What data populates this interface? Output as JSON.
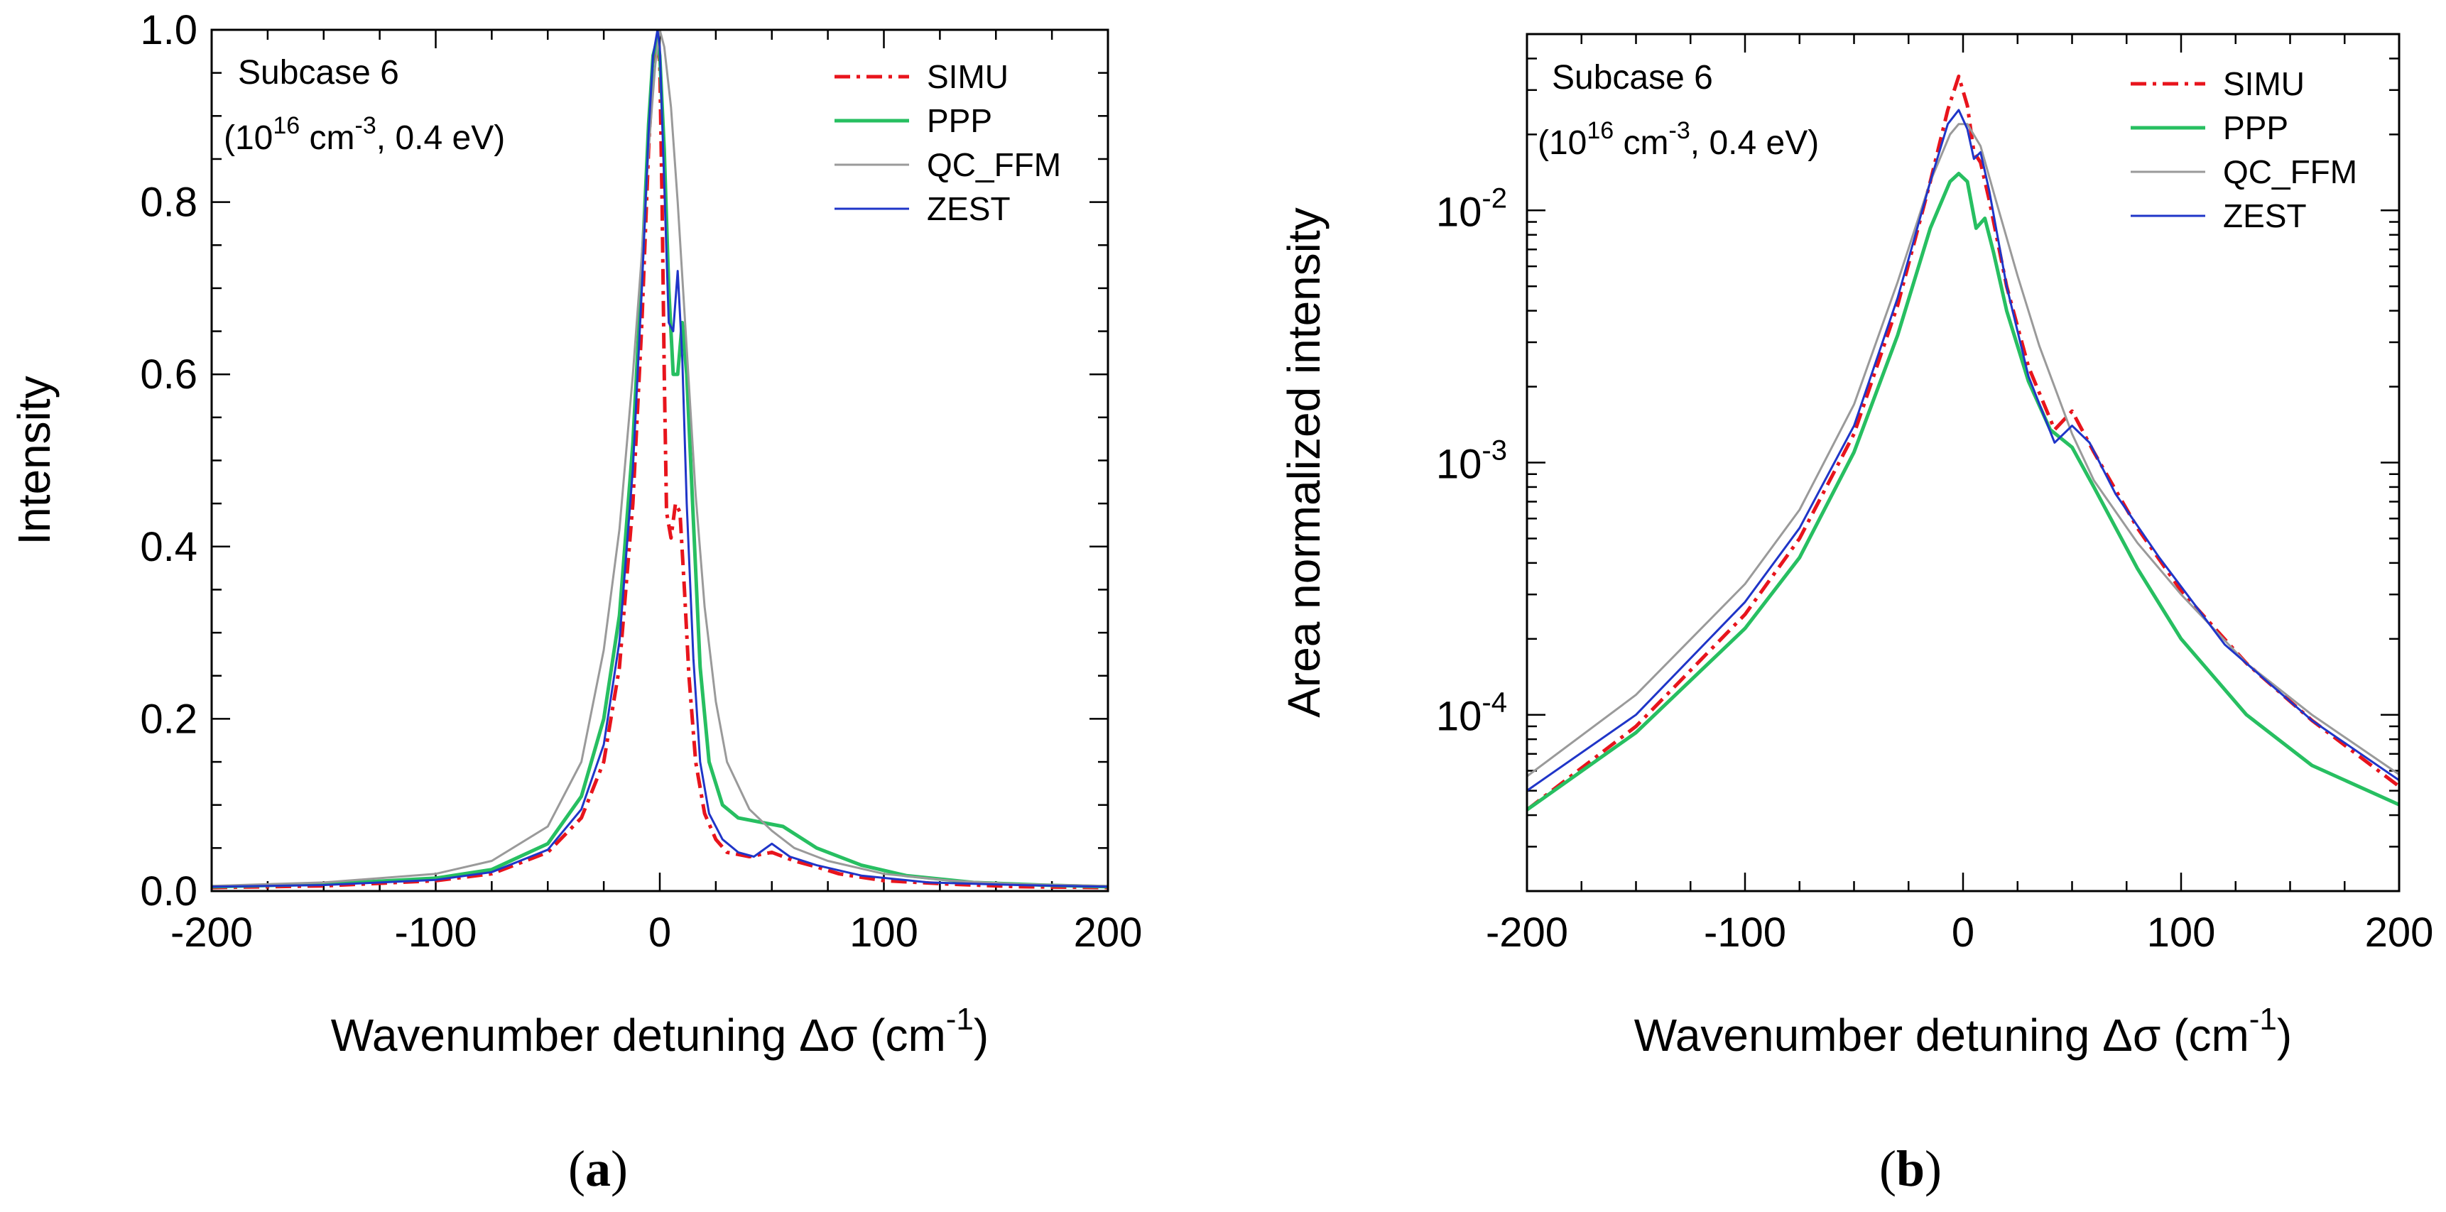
{
  "chart_data": [
    {
      "type": "line",
      "panel_label": "a",
      "annotation": {
        "title": "Subcase 6",
        "density_base": "10",
        "density_exp": "16",
        "density_unit": "cm",
        "density_unit_exp": "-3",
        "temperature": "0.4 eV"
      },
      "xlabel": {
        "text": "Wavenumber detuning",
        "symbol": "Δσ",
        "unit": "cm",
        "unit_exp": "-1"
      },
      "ylabel": "Intensity",
      "y_scale": "linear",
      "xlim": [
        -200,
        200
      ],
      "ylim": [
        0,
        1.0
      ],
      "x_ticks": [
        "-200",
        "-100",
        "0",
        "100",
        "200"
      ],
      "y_ticks": [
        "0.0",
        "0.2",
        "0.4",
        "0.6",
        "0.8",
        "1.0"
      ],
      "x_tick_values": [
        -200,
        -100,
        0,
        100,
        200
      ],
      "y_tick_values": [
        0,
        0.2,
        0.4,
        0.6,
        0.8,
        1.0
      ],
      "legend_position": "top-right",
      "series": [
        {
          "name": "SIMU",
          "color": "#e8141c",
          "style": "dash-dot",
          "x": [
            -200,
            -150,
            -100,
            -75,
            -50,
            -35,
            -25,
            -18,
            -12,
            -8,
            -5,
            -3,
            -1,
            0,
            1,
            2,
            3,
            5,
            7,
            9,
            11,
            13,
            16,
            20,
            25,
            30,
            40,
            50,
            60,
            70,
            80,
            100,
            130,
            160,
            200
          ],
          "y": [
            0.004,
            0.006,
            0.012,
            0.02,
            0.045,
            0.085,
            0.15,
            0.26,
            0.45,
            0.66,
            0.86,
            0.96,
            0.99,
            0.96,
            0.8,
            0.6,
            0.44,
            0.41,
            0.45,
            0.44,
            0.35,
            0.25,
            0.15,
            0.09,
            0.06,
            0.045,
            0.04,
            0.045,
            0.035,
            0.028,
            0.02,
            0.012,
            0.008,
            0.005,
            0.004
          ]
        },
        {
          "name": "PPP",
          "color": "#27bf61",
          "style": "solid",
          "x": [
            -200,
            -150,
            -100,
            -75,
            -50,
            -35,
            -25,
            -18,
            -12,
            -8,
            -5,
            -3,
            -1,
            0,
            2,
            4,
            6,
            8,
            10,
            12,
            15,
            18,
            22,
            28,
            35,
            45,
            55,
            70,
            90,
            110,
            140,
            170,
            200
          ],
          "y": [
            0.005,
            0.008,
            0.015,
            0.025,
            0.055,
            0.11,
            0.2,
            0.32,
            0.52,
            0.72,
            0.89,
            0.97,
            0.99,
            0.97,
            0.86,
            0.7,
            0.6,
            0.6,
            0.66,
            0.6,
            0.43,
            0.26,
            0.15,
            0.1,
            0.085,
            0.08,
            0.075,
            0.05,
            0.03,
            0.018,
            0.01,
            0.007,
            0.005
          ]
        },
        {
          "name": "QC_FFM",
          "color": "#9a9a9a",
          "style": "solid",
          "x": [
            -200,
            -150,
            -100,
            -75,
            -50,
            -35,
            -25,
            -18,
            -12,
            -8,
            -5,
            -2,
            0,
            2,
            5,
            8,
            12,
            16,
            20,
            25,
            30,
            40,
            50,
            60,
            75,
            100,
            130,
            160,
            200
          ],
          "y": [
            0.006,
            0.01,
            0.02,
            0.035,
            0.075,
            0.15,
            0.28,
            0.42,
            0.6,
            0.74,
            0.86,
            0.96,
            1.0,
            0.98,
            0.91,
            0.8,
            0.63,
            0.46,
            0.33,
            0.22,
            0.15,
            0.095,
            0.07,
            0.05,
            0.035,
            0.02,
            0.012,
            0.008,
            0.006
          ]
        },
        {
          "name": "ZEST",
          "color": "#1f35c8",
          "style": "solid",
          "x": [
            -200,
            -150,
            -100,
            -75,
            -50,
            -35,
            -25,
            -18,
            -12,
            -8,
            -5,
            -3,
            -1,
            0,
            2,
            4,
            6,
            8,
            10,
            12,
            15,
            18,
            22,
            28,
            35,
            42,
            50,
            58,
            70,
            90,
            120,
            160,
            200
          ],
          "y": [
            0.005,
            0.007,
            0.013,
            0.022,
            0.048,
            0.095,
            0.17,
            0.29,
            0.49,
            0.7,
            0.88,
            0.97,
            1.0,
            0.98,
            0.82,
            0.66,
            0.65,
            0.72,
            0.62,
            0.45,
            0.27,
            0.15,
            0.09,
            0.06,
            0.045,
            0.04,
            0.055,
            0.04,
            0.03,
            0.018,
            0.01,
            0.007,
            0.005
          ]
        }
      ]
    },
    {
      "type": "line",
      "panel_label": "b",
      "annotation": {
        "title": "Subcase 6",
        "density_base": "10",
        "density_exp": "16",
        "density_unit": "cm",
        "density_unit_exp": "-3",
        "temperature": "0.4 eV"
      },
      "xlabel": {
        "text": "Wavenumber detuning",
        "symbol": "Δσ",
        "unit": "cm",
        "unit_exp": "-1"
      },
      "ylabel": "Area normalized intensity",
      "y_scale": "log",
      "xlim": [
        -200,
        200
      ],
      "ylim": [
        2e-05,
        0.05
      ],
      "x_ticks": [
        "-200",
        "-100",
        "0",
        "100",
        "200"
      ],
      "x_tick_values": [
        -200,
        -100,
        0,
        100,
        200
      ],
      "y_major_ticks": [
        {
          "value": 0.0001,
          "base": "10",
          "exp": "-4"
        },
        {
          "value": 0.001,
          "base": "10",
          "exp": "-3"
        },
        {
          "value": 0.01,
          "base": "10",
          "exp": "-2"
        }
      ],
      "legend_position": "top-right",
      "series": [
        {
          "name": "SIMU",
          "color": "#e8141c",
          "style": "dash-dot",
          "x": [
            -200,
            -150,
            -100,
            -75,
            -50,
            -30,
            -15,
            -7,
            -2,
            2,
            5,
            8,
            12,
            20,
            30,
            42,
            50,
            60,
            80,
            100,
            130,
            160,
            200
          ],
          "y": [
            4.2e-05,
            9e-05,
            0.00025,
            0.0005,
            0.0013,
            0.0042,
            0.013,
            0.025,
            0.034,
            0.026,
            0.017,
            0.0155,
            0.011,
            0.005,
            0.0024,
            0.00135,
            0.0016,
            0.0011,
            0.00055,
            0.00031,
            0.00016,
            9.5e-05,
            5.2e-05
          ]
        },
        {
          "name": "PPP",
          "color": "#27bf61",
          "style": "solid",
          "x": [
            -200,
            -150,
            -100,
            -75,
            -50,
            -30,
            -15,
            -6,
            -2,
            2,
            6,
            10,
            14,
            20,
            30,
            40,
            50,
            60,
            80,
            100,
            130,
            160,
            200
          ],
          "y": [
            4.2e-05,
            8.5e-05,
            0.00022,
            0.00042,
            0.0011,
            0.0032,
            0.0085,
            0.013,
            0.014,
            0.013,
            0.0085,
            0.0093,
            0.0068,
            0.004,
            0.0021,
            0.00135,
            0.00115,
            0.0008,
            0.00038,
            0.0002,
            0.0001,
            6.3e-05,
            4.4e-05
          ]
        },
        {
          "name": "QC_FFM",
          "color": "#9a9a9a",
          "style": "solid",
          "x": [
            -200,
            -150,
            -100,
            -75,
            -50,
            -30,
            -15,
            -6,
            -2,
            2,
            8,
            15,
            25,
            35,
            50,
            60,
            80,
            100,
            130,
            160,
            200
          ],
          "y": [
            5.7e-05,
            0.00012,
            0.00033,
            0.00065,
            0.0017,
            0.0052,
            0.013,
            0.02,
            0.022,
            0.022,
            0.018,
            0.011,
            0.0055,
            0.0029,
            0.0013,
            0.00085,
            0.00048,
            0.0003,
            0.00016,
            0.0001,
            5.8e-05
          ]
        },
        {
          "name": "ZEST",
          "color": "#1f35c8",
          "style": "solid",
          "x": [
            -200,
            -150,
            -100,
            -75,
            -50,
            -30,
            -15,
            -7,
            -2,
            2,
            5,
            8,
            12,
            20,
            30,
            42,
            50,
            58,
            70,
            90,
            120,
            160,
            200
          ],
          "y": [
            5e-05,
            0.0001,
            0.00028,
            0.00055,
            0.0014,
            0.0045,
            0.013,
            0.022,
            0.025,
            0.021,
            0.016,
            0.017,
            0.012,
            0.005,
            0.0022,
            0.0012,
            0.0014,
            0.0012,
            0.00075,
            0.00042,
            0.00019,
            9.5e-05,
            5.5e-05
          ]
        }
      ]
    }
  ]
}
